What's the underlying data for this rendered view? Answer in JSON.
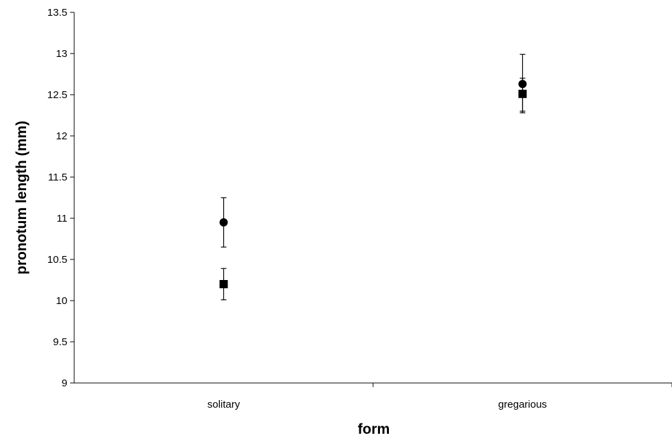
{
  "chart_data": {
    "type": "scatter",
    "title": "",
    "xlabel": "form",
    "ylabel": "pronotum length (mm)",
    "categories": [
      "solitary",
      "gregarious"
    ],
    "ylim": [
      9,
      13.5
    ],
    "yticks": [
      9,
      9.5,
      10,
      10.5,
      11,
      11.5,
      12,
      12.5,
      13,
      13.5
    ],
    "ytick_labels": [
      "9",
      "9.5",
      "10",
      "10.5",
      "11",
      "11.5",
      "12",
      "12.5",
      "13",
      "13.5"
    ],
    "grid": false,
    "legend": "none",
    "series": [
      {
        "marker": "circle",
        "color": "#000000",
        "values": [
          10.95,
          12.63
        ],
        "err_low": [
          10.65,
          12.28
        ],
        "err_high": [
          11.25,
          12.99
        ]
      },
      {
        "marker": "square",
        "color": "#000000",
        "values": [
          10.2,
          12.51
        ],
        "err_low": [
          10.01,
          12.3
        ],
        "err_high": [
          10.39,
          12.7
        ]
      }
    ]
  }
}
